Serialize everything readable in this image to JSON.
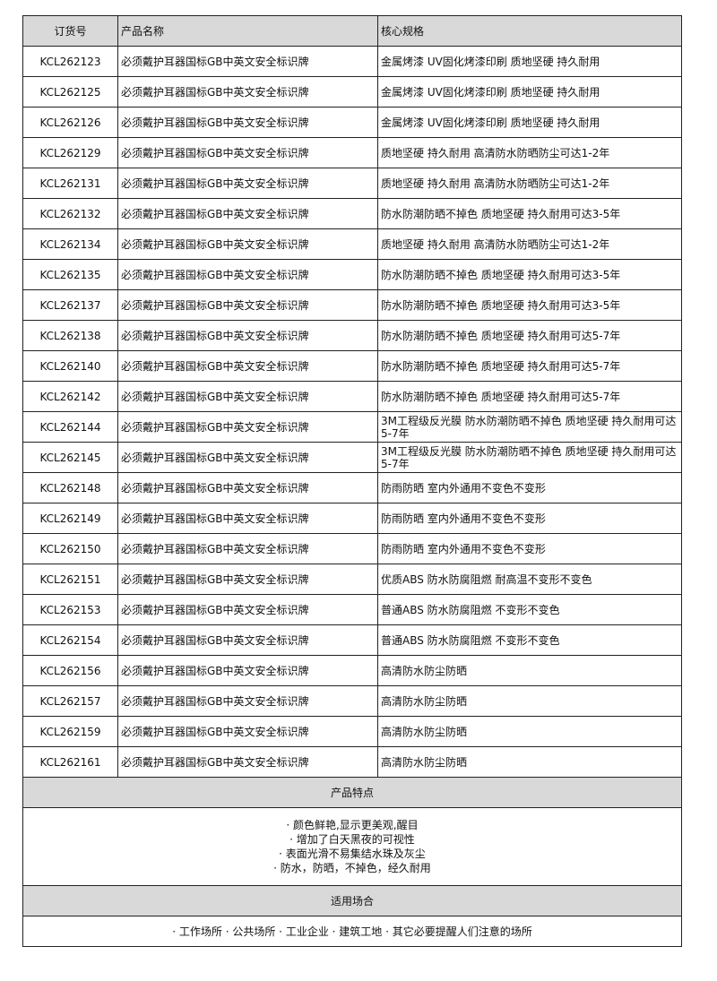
{
  "headers": [
    "订货号",
    "产品名称",
    "核心规格"
  ],
  "rows": [
    [
      "KCL262123",
      "必须戴护耳器国标GB中英文安全标识牌",
      "金属烤漆 UV固化烤漆印刷 质地坚硬 持久耐用"
    ],
    [
      "KCL262125",
      "必须戴护耳器国标GB中英文安全标识牌",
      "金属烤漆 UV固化烤漆印刷 质地坚硬 持久耐用"
    ],
    [
      "KCL262126",
      "必须戴护耳器国标GB中英文安全标识牌",
      "金属烤漆 UV固化烤漆印刷 质地坚硬 持久耐用"
    ],
    [
      "KCL262129",
      "必须戴护耳器国标GB中英文安全标识牌",
      "质地坚硬 持久耐用 高清防水防晒防尘可达1-2年"
    ],
    [
      "KCL262131",
      "必须戴护耳器国标GB中英文安全标识牌",
      "质地坚硬 持久耐用 高清防水防晒防尘可达1-2年"
    ],
    [
      "KCL262132",
      "必须戴护耳器国标GB中英文安全标识牌",
      "防水防潮防晒不掉色 质地坚硬 持久耐用可达3-5年"
    ],
    [
      "KCL262134",
      "必须戴护耳器国标GB中英文安全标识牌",
      "质地坚硬 持久耐用 高清防水防晒防尘可达1-2年"
    ],
    [
      "KCL262135",
      "必须戴护耳器国标GB中英文安全标识牌",
      "防水防潮防晒不掉色 质地坚硬 持久耐用可达3-5年"
    ],
    [
      "KCL262137",
      "必须戴护耳器国标GB中英文安全标识牌",
      "防水防潮防晒不掉色 质地坚硬 持久耐用可达3-5年"
    ],
    [
      "KCL262138",
      "必须戴护耳器国标GB中英文安全标识牌",
      "防水防潮防晒不掉色 质地坚硬 持久耐用可达5-7年"
    ],
    [
      "KCL262140",
      "必须戴护耳器国标GB中英文安全标识牌",
      "防水防潮防晒不掉色 质地坚硬 持久耐用可达5-7年"
    ],
    [
      "KCL262142",
      "必须戴护耳器国标GB中英文安全标识牌",
      "防水防潮防晒不掉色 质地坚硬 持久耐用可达5-7年"
    ],
    [
      "KCL262144",
      "必须戴护耳器国标GB中英文安全标识牌",
      "3M工程级反光膜 防水防潮防晒不掉色 质地坚硬 持久耐用可达5-7年"
    ],
    [
      "KCL262145",
      "必须戴护耳器国标GB中英文安全标识牌",
      "3M工程级反光膜 防水防潮防晒不掉色 质地坚硬 持久耐用可达5-7年"
    ],
    [
      "KCL262148",
      "必须戴护耳器国标GB中英文安全标识牌",
      "防雨防晒 室内外通用不变色不变形"
    ],
    [
      "KCL262149",
      "必须戴护耳器国标GB中英文安全标识牌",
      "防雨防晒 室内外通用不变色不变形"
    ],
    [
      "KCL262150",
      "必须戴护耳器国标GB中英文安全标识牌",
      "防雨防晒 室内外通用不变色不变形"
    ],
    [
      "KCL262151",
      "必须戴护耳器国标GB中英文安全标识牌",
      "优质ABS 防水防腐阻燃 耐高温不变形不变色"
    ],
    [
      "KCL262153",
      "必须戴护耳器国标GB中英文安全标识牌",
      "普通ABS 防水防腐阻燃 不变形不变色"
    ],
    [
      "KCL262154",
      "必须戴护耳器国标GB中英文安全标识牌",
      "普通ABS 防水防腐阻燃 不变形不变色"
    ],
    [
      "KCL262156",
      "必须戴护耳器国标GB中英文安全标识牌",
      "高清防水防尘防晒"
    ],
    [
      "KCL262157",
      "必须戴护耳器国标GB中英文安全标识牌",
      "高清防水防尘防晒"
    ],
    [
      "KCL262159",
      "必须戴护耳器国标GB中英文安全标识牌",
      "高清防水防尘防晒"
    ],
    [
      "KCL262161",
      "必须戴护耳器国标GB中英文安全标识牌",
      "高清防水防尘防晒"
    ]
  ],
  "features": {
    "title": "产品特点",
    "items": [
      "· 颜色鲜艳,显示更美观,醒目",
      "· 增加了白天黑夜的可视性",
      "· 表面光滑不易集结水珠及灰尘",
      "· 防水，防晒，不掉色，经久耐用"
    ]
  },
  "usage": {
    "title": "适用场合",
    "text": "· 工作场所 · 公共场所 · 工业企业 · 建筑工地 · 其它必要提醒人们注意的场所"
  },
  "colors": {
    "header_bg": "#d9d9d9",
    "border": "#222222"
  }
}
